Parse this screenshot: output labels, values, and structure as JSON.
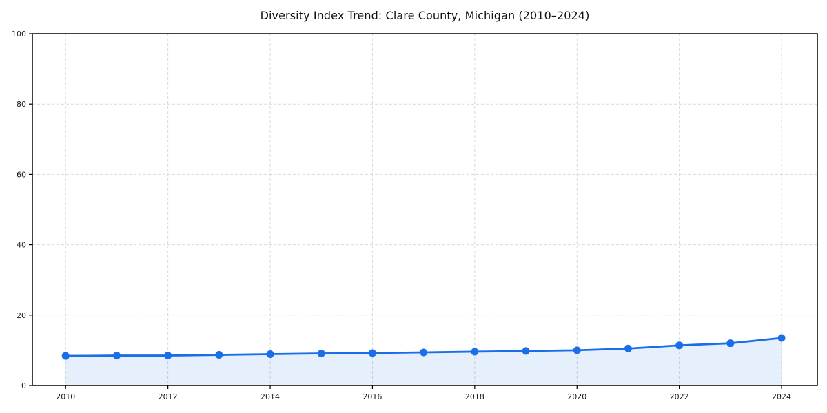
{
  "title": "Diversity Index Trend: Clare County, Michigan (2010–2024)",
  "chart_data": {
    "type": "line",
    "title": "Diversity Index Trend: Clare County, Michigan (2010–2024)",
    "series_name": "Diversity Index",
    "x": [
      2010,
      2011,
      2012,
      2013,
      2014,
      2015,
      2016,
      2017,
      2018,
      2019,
      2020,
      2021,
      2022,
      2023,
      2024
    ],
    "values": [
      8.4,
      8.5,
      8.5,
      8.7,
      8.9,
      9.1,
      9.2,
      9.4,
      9.6,
      9.8,
      10.0,
      10.5,
      11.4,
      12.0,
      13.5
    ],
    "xlabel": "",
    "ylabel": "",
    "xlim": [
      2009.35,
      2024.7
    ],
    "ylim": [
      0,
      100
    ],
    "xticks": [
      2010,
      2012,
      2014,
      2016,
      2018,
      2020,
      2022,
      2024
    ],
    "yticks": [
      0,
      20,
      40,
      60,
      80,
      100
    ],
    "grid": "dashed",
    "legend_position": "none",
    "colors": {
      "line": "#1a6fe8",
      "marker": "#1a6fe8",
      "area_fill": "#1a6fe8",
      "area_fill_opacity": 0.11,
      "gridline": "#d9d9d9",
      "spine": "#000000",
      "background": "#ffffff",
      "text": "#1a1a1a"
    },
    "style": {
      "marker_shape": "circle",
      "line_width": 2.8,
      "marker_radius": 5.5,
      "area_to_zero": true
    }
  }
}
